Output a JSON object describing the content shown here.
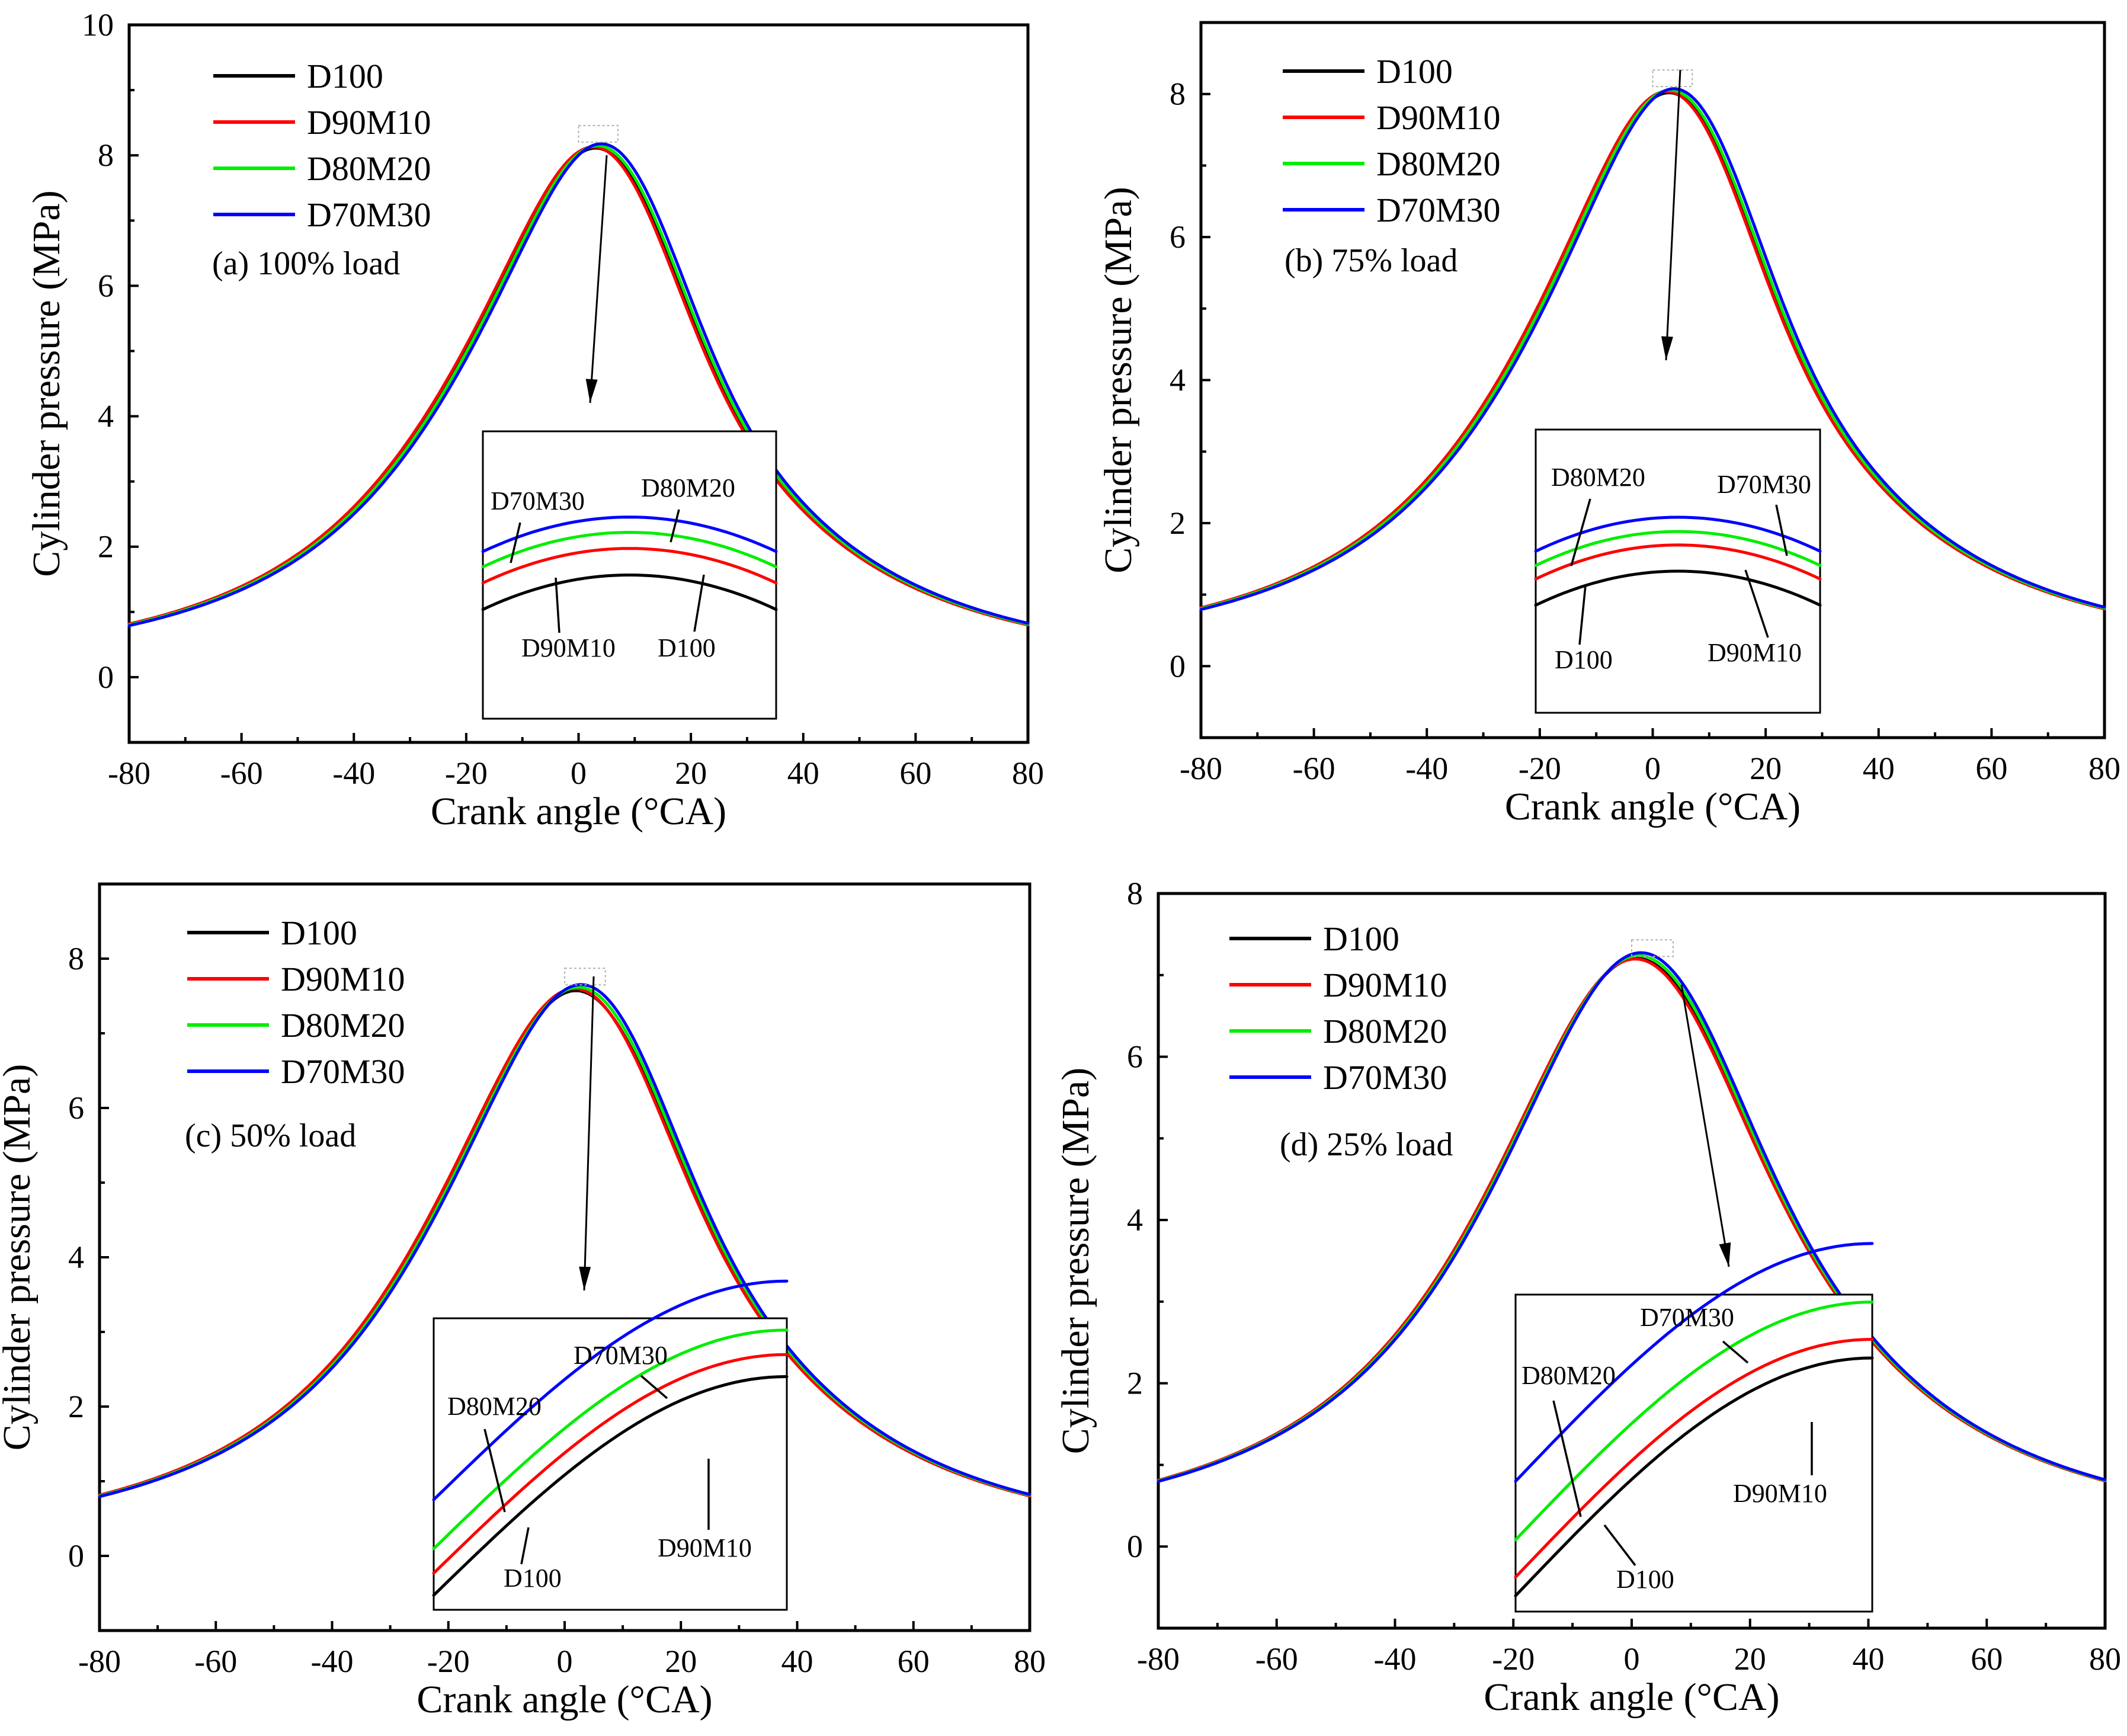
{
  "chart_data": [
    {
      "type": "line",
      "load_label": "(a) 100% load",
      "xlabel": "Crank angle (°CA)",
      "ylabel": "Cylinder pressure (MPa)",
      "xlim": [
        -80,
        80
      ],
      "ylim": [
        -1,
        10
      ],
      "xticks": [
        "-80",
        "-60",
        "-40",
        "-20",
        "0",
        "20",
        "40",
        "60",
        "80"
      ],
      "yticks": [
        "0",
        "2",
        "4",
        "6",
        "8",
        "10"
      ],
      "ytick_values": [
        0,
        2,
        4,
        6,
        8,
        10
      ],
      "legend": [
        "D100",
        "D90M10",
        "D80M20",
        "D70M30"
      ],
      "series": [
        {
          "name": "D100",
          "color": "#000000",
          "peak": 8.26,
          "peak_x": 7,
          "shift": 0.0,
          "inset": 0.0
        },
        {
          "name": "D90M10",
          "color": "#ff0000",
          "peak": 8.28,
          "peak_x": 7,
          "shift": -0.4,
          "inset": 0.33
        },
        {
          "name": "D80M20",
          "color": "#00ee00",
          "peak": 8.3,
          "peak_x": 7,
          "shift": 0.3,
          "inset": 0.53
        },
        {
          "name": "D70M30",
          "color": "#0000ff",
          "peak": 8.33,
          "peak_x": 7,
          "shift": 0.9,
          "inset": 0.72
        }
      ],
      "inset_labels": [
        {
          "text": "D70M30"
        },
        {
          "text": "D80M20"
        },
        {
          "text": "D90M10"
        },
        {
          "text": "D100"
        }
      ]
    },
    {
      "type": "line",
      "load_label": "(b) 75% load",
      "xlabel": "Crank angle (°CA)",
      "ylabel": "Cylinder pressure (MPa)",
      "xlim": [
        -80,
        80
      ],
      "ylim": [
        -1,
        9
      ],
      "xticks": [
        "-80",
        "-60",
        "-40",
        "-20",
        "0",
        "20",
        "40",
        "60",
        "80"
      ],
      "yticks": [
        "0",
        "2",
        "4",
        "6",
        "8"
      ],
      "ytick_values": [
        0,
        2,
        4,
        6,
        8
      ],
      "legend": [
        "D100",
        "D90M10",
        "D80M20",
        "D70M30"
      ],
      "series": [
        {
          "name": "D100",
          "color": "#000000",
          "peak": 8.16,
          "peak_x": 7,
          "shift": 0.0,
          "inset": 0.0
        },
        {
          "name": "D90M10",
          "color": "#ff0000",
          "peak": 8.18,
          "peak_x": 7,
          "shift": -0.4,
          "inset": 0.33
        },
        {
          "name": "D80M20",
          "color": "#00ee00",
          "peak": 8.2,
          "peak_x": 7,
          "shift": 0.2,
          "inset": 0.5
        },
        {
          "name": "D70M30",
          "color": "#0000ff",
          "peak": 8.22,
          "peak_x": 7,
          "shift": 0.8,
          "inset": 0.68
        }
      ],
      "inset_labels": [
        {
          "text": "D80M20"
        },
        {
          "text": "D70M30"
        },
        {
          "text": "D100"
        },
        {
          "text": "D90M10"
        }
      ]
    },
    {
      "type": "line",
      "load_label": "(c) 50% load",
      "xlabel": "Crank angle (°CA)",
      "ylabel": "Cylinder pressure (MPa)",
      "xlim": [
        -80,
        80
      ],
      "ylim": [
        -1,
        9
      ],
      "xticks": [
        "-80",
        "-60",
        "-40",
        "-20",
        "0",
        "20",
        "40",
        "60",
        "80"
      ],
      "yticks": [
        "0",
        "2",
        "4",
        "6",
        "8"
      ],
      "ytick_values": [
        0,
        2,
        4,
        6,
        8
      ],
      "legend": [
        "D100",
        "D90M10",
        "D80M20",
        "D70M30"
      ],
      "series": [
        {
          "name": "D100",
          "color": "#000000",
          "peak": 7.67,
          "peak_x": 7,
          "shift": 0.0,
          "inset": 0.0
        },
        {
          "name": "D90M10",
          "color": "#ff0000",
          "peak": 7.7,
          "peak_x": 7,
          "shift": -0.3,
          "inset": 0.18
        },
        {
          "name": "D80M20",
          "color": "#00ee00",
          "peak": 7.72,
          "peak_x": 7,
          "shift": 0.3,
          "inset": 0.38
        },
        {
          "name": "D70M30",
          "color": "#0000ff",
          "peak": 7.76,
          "peak_x": 7,
          "shift": 0.7,
          "inset": 0.78
        }
      ],
      "inset_labels": [
        {
          "text": "D70M30"
        },
        {
          "text": "D80M20"
        },
        {
          "text": "D90M10"
        },
        {
          "text": "D100"
        }
      ]
    },
    {
      "type": "line",
      "load_label": "(d) 25% load",
      "xlabel": "Crank angle (°CA)",
      "ylabel": "Cylinder pressure (MPa)",
      "xlim": [
        -80,
        80
      ],
      "ylim": [
        -1,
        8
      ],
      "xticks": [
        "-80",
        "-60",
        "-40",
        "-20",
        "0",
        "20",
        "40",
        "60",
        "80"
      ],
      "yticks": [
        "0",
        "2",
        "4",
        "6",
        "8"
      ],
      "ytick_values": [
        0,
        2,
        4,
        6,
        8
      ],
      "legend": [
        "D100",
        "D90M10",
        "D80M20",
        "D70M30"
      ],
      "series": [
        {
          "name": "D100",
          "color": "#000000",
          "peak": 7.25,
          "peak_x": 7,
          "shift": 0.0,
          "inset": 0.0
        },
        {
          "name": "D90M10",
          "color": "#ff0000",
          "peak": 7.24,
          "peak_x": 7,
          "shift": -0.2,
          "inset": 0.14
        },
        {
          "name": "D80M20",
          "color": "#00ee00",
          "peak": 7.29,
          "peak_x": 7,
          "shift": 0.2,
          "inset": 0.42
        },
        {
          "name": "D70M30",
          "color": "#0000ff",
          "peak": 7.33,
          "peak_x": 7,
          "shift": 0.5,
          "inset": 0.86
        }
      ],
      "inset_labels": [
        {
          "text": "D70M30"
        },
        {
          "text": "D80M20"
        },
        {
          "text": "D90M10"
        },
        {
          "text": "D100"
        }
      ]
    }
  ]
}
